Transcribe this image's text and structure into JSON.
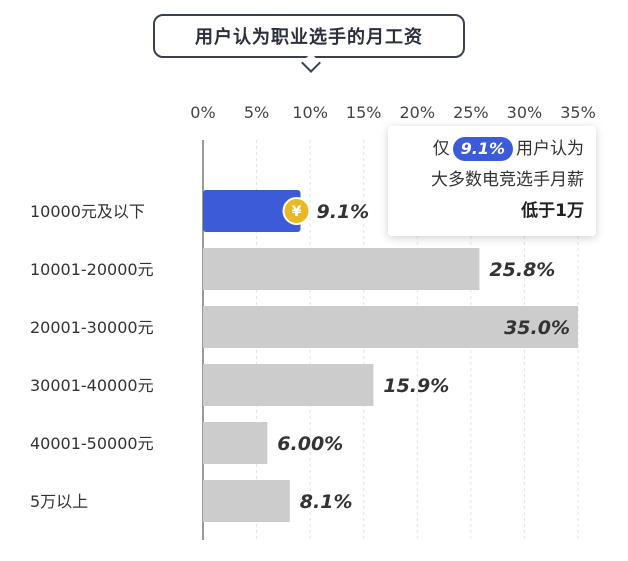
{
  "title": "用户认为职业选手的月工资",
  "chart_data": {
    "type": "bar",
    "orientation": "horizontal",
    "title": "用户认为职业选手的月工资",
    "categories": [
      "10000元及以下",
      "10001-20000元",
      "20001-30000元",
      "30001-40000元",
      "40001-50000元",
      "5万以上"
    ],
    "values": [
      9.1,
      25.8,
      35.0,
      15.9,
      6.0,
      8.1
    ],
    "value_labels": [
      "9.1%",
      "25.8%",
      "35.0%",
      "15.9%",
      "6.00%",
      "8.1%"
    ],
    "x_ticks": [
      "0%",
      "5%",
      "10%",
      "15%",
      "20%",
      "25%",
      "30%",
      "35%"
    ],
    "xlim": [
      0,
      35
    ],
    "grid": true,
    "colors": {
      "highlight": "#3b5bd9",
      "default": "#cccccc",
      "coin": "#e8b923",
      "label": "#333333"
    },
    "highlight_index": 0,
    "highlight_icon": "yuan-coin-icon"
  },
  "callout": {
    "line1_prefix": "仅",
    "line1_badge": "9.1%",
    "line1_suffix": "用户认为",
    "line2": "大多数电竞选手月薪",
    "line3": "低于1万"
  }
}
